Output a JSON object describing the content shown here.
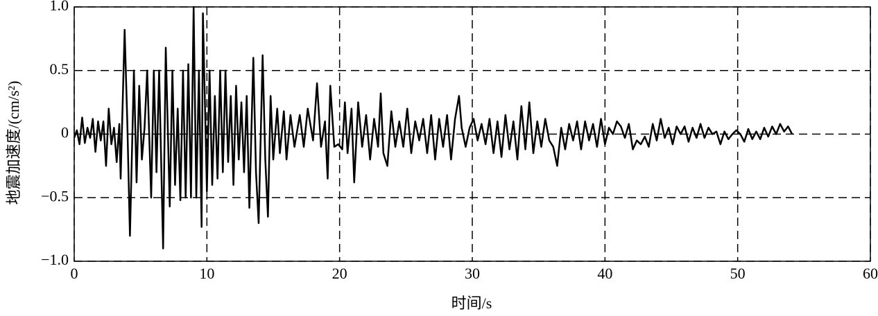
{
  "chart_data": {
    "type": "line",
    "xlabel": "时间/s",
    "ylabel": "地震加速度/(cm/s²)",
    "color": "#000000",
    "grid": true,
    "xlim": [
      0,
      60
    ],
    "xticks": [
      0,
      10,
      20,
      30,
      40,
      50,
      60
    ],
    "ylim": [
      -1,
      1
    ],
    "yticks": [
      {
        "value": -1,
        "label": "−1.0"
      },
      {
        "value": -0.5,
        "label": "−0.5"
      },
      0,
      0.5,
      {
        "value": 1,
        "label": "1.0"
      }
    ],
    "x": [
      0,
      0.2,
      0.4,
      0.6,
      0.8,
      1.0,
      1.2,
      1.4,
      1.6,
      1.8,
      2.0,
      2.2,
      2.4,
      2.6,
      2.8,
      3.0,
      3.2,
      3.4,
      3.5,
      3.8,
      4.0,
      4.2,
      4.5,
      4.7,
      4.9,
      5.1,
      5.3,
      5.5,
      5.8,
      6.0,
      6.2,
      6.4,
      6.7,
      6.9,
      7.2,
      7.4,
      7.6,
      7.8,
      8.0,
      8.2,
      8.4,
      8.6,
      8.8,
      9.0,
      9.2,
      9.4,
      9.6,
      9.7,
      10.0,
      10.2,
      10.4,
      10.6,
      10.8,
      11.0,
      11.2,
      11.4,
      11.6,
      11.8,
      12.0,
      12.2,
      12.4,
      12.6,
      12.8,
      13.0,
      13.2,
      13.5,
      13.7,
      13.9,
      14.2,
      14.4,
      14.6,
      14.8,
      15.0,
      15.3,
      15.5,
      15.8,
      16.0,
      16.3,
      16.6,
      17.0,
      17.3,
      17.6,
      18.0,
      18.3,
      18.6,
      18.9,
      19.1,
      19.3,
      19.6,
      19.9,
      20.2,
      20.4,
      20.6,
      20.9,
      21.1,
      21.4,
      21.7,
      22.0,
      22.3,
      22.6,
      22.9,
      23.1,
      23.3,
      23.6,
      23.9,
      24.2,
      24.5,
      24.8,
      25.1,
      25.4,
      25.7,
      26.0,
      26.3,
      26.6,
      26.9,
      27.2,
      27.5,
      27.8,
      28.1,
      28.4,
      28.7,
      29.0,
      29.2,
      29.5,
      29.8,
      30.1,
      30.4,
      30.7,
      31.0,
      31.3,
      31.6,
      31.9,
      32.2,
      32.5,
      32.8,
      33.1,
      33.4,
      33.7,
      34.0,
      34.3,
      34.6,
      34.9,
      35.2,
      35.5,
      35.8,
      36.1,
      36.4,
      36.7,
      37.0,
      37.3,
      37.6,
      37.9,
      38.2,
      38.5,
      38.8,
      39.1,
      39.4,
      39.7,
      40.0,
      40.3,
      40.6,
      40.9,
      41.2,
      41.5,
      41.8,
      42.1,
      42.4,
      42.7,
      43.0,
      43.3,
      43.6,
      43.9,
      44.2,
      44.5,
      44.8,
      45.1,
      45.4,
      45.7,
      46.0,
      46.3,
      46.6,
      46.9,
      47.2,
      47.5,
      47.8,
      48.1,
      48.4,
      48.7,
      49.0,
      49.3,
      49.6,
      49.9,
      50.2,
      50.5,
      50.8,
      51.1,
      51.4,
      51.7,
      52.0,
      52.3,
      52.6,
      52.9,
      53.2,
      53.5,
      53.8,
      54.1
    ],
    "values": [
      -0.03,
      0.03,
      -0.08,
      0.13,
      -0.07,
      0.05,
      -0.03,
      0.12,
      -0.14,
      0.1,
      -0.05,
      0.1,
      -0.25,
      0.2,
      -0.08,
      0.05,
      -0.22,
      0.08,
      -0.35,
      0.82,
      0.1,
      -0.8,
      0.5,
      -0.38,
      0.38,
      -0.2,
      0.05,
      0.5,
      -0.5,
      0.5,
      -0.3,
      0.5,
      -0.9,
      0.68,
      -0.57,
      0.5,
      -0.4,
      0.2,
      -0.52,
      0.5,
      -0.5,
      0.55,
      -0.5,
      1.0,
      -0.5,
      0.5,
      -0.73,
      0.95,
      -0.45,
      0.5,
      -0.4,
      0.3,
      -0.35,
      0.5,
      -0.3,
      0.5,
      -0.22,
      0.3,
      -0.4,
      0.38,
      -0.2,
      0.25,
      -0.3,
      0.3,
      -0.58,
      0.6,
      -0.3,
      -0.7,
      0.62,
      -0.2,
      -0.65,
      0.3,
      -0.2,
      0.2,
      -0.15,
      0.18,
      -0.2,
      0.15,
      -0.1,
      0.15,
      -0.1,
      0.2,
      -0.05,
      0.4,
      -0.1,
      0.1,
      -0.35,
      0.38,
      -0.1,
      -0.08,
      -0.12,
      0.25,
      -0.15,
      0.2,
      -0.38,
      0.25,
      -0.1,
      0.15,
      -0.2,
      0.12,
      -0.1,
      0.32,
      -0.15,
      -0.25,
      0.18,
      -0.1,
      0.1,
      -0.1,
      0.2,
      -0.15,
      0.1,
      -0.05,
      0.12,
      -0.15,
      0.15,
      -0.2,
      0.12,
      -0.1,
      0.15,
      -0.2,
      0.12,
      0.3,
      0.05,
      -0.1,
      0.05,
      0.12,
      -0.05,
      0.08,
      -0.08,
      0.12,
      -0.15,
      0.1,
      -0.18,
      0.15,
      -0.12,
      0.1,
      -0.2,
      0.22,
      -0.12,
      0.25,
      -0.15,
      0.1,
      -0.1,
      0.12,
      -0.05,
      -0.1,
      -0.25,
      0.05,
      -0.12,
      0.08,
      -0.05,
      0.1,
      -0.12,
      0.1,
      -0.05,
      0.08,
      -0.1,
      0.12,
      -0.08,
      0.05,
      0,
      0.1,
      0.06,
      -0.03,
      0.08,
      -0.12,
      -0.05,
      -0.08,
      -0.02,
      -0.1,
      0.08,
      -0.05,
      0.12,
      -0.03,
      0.05,
      -0.08,
      0.06,
      0,
      0.06,
      -0.06,
      0.05,
      -0.03,
      0.08,
      -0.03,
      0.05,
      0,
      0.02,
      -0.08,
      0.02,
      -0.04,
      0,
      0.03,
      0,
      -0.06,
      0.04,
      -0.04,
      0.02,
      -0.04,
      0.05,
      -0.02,
      0.06,
      0,
      0.08,
      0.02,
      0.06,
      0
    ]
  }
}
